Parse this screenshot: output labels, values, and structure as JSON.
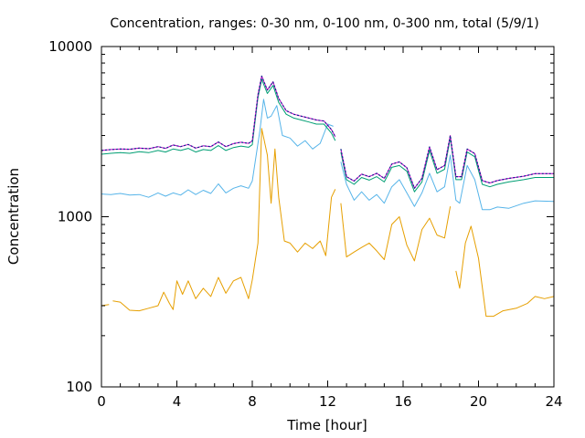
{
  "chart_data": {
    "type": "line",
    "title": "Concentration, ranges: 0-30 nm, 0-100 nm, 0-300 nm, total (5/9/1)",
    "xlabel": "Time [hour]",
    "ylabel": "Concentration",
    "xlim": [
      0,
      24
    ],
    "ylim": [
      100,
      10000
    ],
    "yscale": "log",
    "grid": false,
    "legend": "none",
    "x_ticks": [
      0,
      4,
      8,
      12,
      16,
      20,
      24
    ],
    "x_tick_labels": [
      "0",
      "4",
      "8",
      "12",
      "16",
      "20",
      "24"
    ],
    "y_ticks": [
      100,
      1000,
      10000
    ],
    "y_tick_labels": [
      "100",
      "1000",
      "10000"
    ],
    "series": [
      {
        "color": "#e69f00",
        "points": [
          [
            0,
            300
          ],
          [
            0.4,
            305
          ],
          [
            0.5,
            null
          ],
          [
            0.6,
            320
          ],
          [
            1,
            315
          ],
          [
            1.5,
            282
          ],
          [
            2,
            280
          ],
          [
            2.5,
            290
          ],
          [
            3,
            300
          ],
          [
            3.3,
            360
          ],
          [
            3.6,
            310
          ],
          [
            3.8,
            285
          ],
          [
            4,
            420
          ],
          [
            4.3,
            350
          ],
          [
            4.6,
            420
          ],
          [
            5,
            330
          ],
          [
            5.4,
            380
          ],
          [
            5.8,
            340
          ],
          [
            6.2,
            440
          ],
          [
            6.6,
            355
          ],
          [
            7,
            420
          ],
          [
            7.4,
            440
          ],
          [
            7.8,
            330
          ],
          [
            8,
            425
          ],
          [
            8.3,
            700
          ],
          [
            8.5,
            3300
          ],
          [
            8.8,
            2300
          ],
          [
            9.0,
            1200
          ],
          [
            9.2,
            2500
          ],
          [
            9.4,
            1300
          ],
          [
            9.7,
            720
          ],
          [
            10,
            700
          ],
          [
            10.4,
            620
          ],
          [
            10.8,
            700
          ],
          [
            11.2,
            650
          ],
          [
            11.6,
            720
          ],
          [
            11.9,
            590
          ],
          [
            12.2,
            1300
          ],
          [
            12.4,
            1450
          ],
          [
            12.5,
            null
          ],
          [
            12.7,
            1200
          ],
          [
            13,
            580
          ],
          [
            13.4,
            620
          ],
          [
            13.8,
            660
          ],
          [
            14.2,
            700
          ],
          [
            14.6,
            630
          ],
          [
            15,
            560
          ],
          [
            15.4,
            900
          ],
          [
            15.8,
            1000
          ],
          [
            16.2,
            680
          ],
          [
            16.6,
            550
          ],
          [
            17,
            840
          ],
          [
            17.4,
            980
          ],
          [
            17.8,
            780
          ],
          [
            18.2,
            750
          ],
          [
            18.5,
            1150
          ],
          [
            18.6,
            null
          ],
          [
            18.8,
            480
          ],
          [
            19.0,
            380
          ],
          [
            19.3,
            700
          ],
          [
            19.6,
            880
          ],
          [
            20,
            570
          ],
          [
            20.4,
            260
          ],
          [
            20.8,
            260
          ],
          [
            21.3,
            280
          ],
          [
            22,
            290
          ],
          [
            22.6,
            310
          ],
          [
            23,
            340
          ],
          [
            23.5,
            330
          ],
          [
            24,
            340
          ]
        ]
      },
      {
        "color": "#56b4e9",
        "points": [
          [
            0,
            1360
          ],
          [
            0.5,
            1350
          ],
          [
            1,
            1370
          ],
          [
            1.5,
            1340
          ],
          [
            2,
            1350
          ],
          [
            2.5,
            1300
          ],
          [
            3,
            1380
          ],
          [
            3.4,
            1320
          ],
          [
            3.8,
            1380
          ],
          [
            4.2,
            1340
          ],
          [
            4.6,
            1440
          ],
          [
            5,
            1350
          ],
          [
            5.4,
            1430
          ],
          [
            5.8,
            1370
          ],
          [
            6.2,
            1560
          ],
          [
            6.6,
            1380
          ],
          [
            7,
            1470
          ],
          [
            7.4,
            1520
          ],
          [
            7.8,
            1470
          ],
          [
            8,
            1620
          ],
          [
            8.4,
            3200
          ],
          [
            8.6,
            4900
          ],
          [
            8.8,
            3800
          ],
          [
            9,
            3900
          ],
          [
            9.3,
            4500
          ],
          [
            9.6,
            3000
          ],
          [
            10,
            2900
          ],
          [
            10.4,
            2600
          ],
          [
            10.8,
            2800
          ],
          [
            11.2,
            2500
          ],
          [
            11.6,
            2700
          ],
          [
            12,
            3500
          ],
          [
            12.3,
            3400
          ],
          [
            12.5,
            null
          ],
          [
            12.7,
            2100
          ],
          [
            13,
            1550
          ],
          [
            13.4,
            1250
          ],
          [
            13.8,
            1400
          ],
          [
            14.2,
            1250
          ],
          [
            14.6,
            1350
          ],
          [
            15,
            1200
          ],
          [
            15.4,
            1500
          ],
          [
            15.8,
            1650
          ],
          [
            16.2,
            1380
          ],
          [
            16.6,
            1150
          ],
          [
            17,
            1380
          ],
          [
            17.4,
            1800
          ],
          [
            17.8,
            1400
          ],
          [
            18.2,
            1500
          ],
          [
            18.5,
            2300
          ],
          [
            18.8,
            1250
          ],
          [
            19.0,
            1200
          ],
          [
            19.4,
            2000
          ],
          [
            19.8,
            1650
          ],
          [
            20.2,
            1100
          ],
          [
            20.6,
            1100
          ],
          [
            21,
            1140
          ],
          [
            21.6,
            1120
          ],
          [
            22.4,
            1200
          ],
          [
            23,
            1240
          ],
          [
            24,
            1230
          ]
        ]
      },
      {
        "color": "#009e73",
        "points": [
          [
            0,
            2330
          ],
          [
            0.5,
            2360
          ],
          [
            1,
            2380
          ],
          [
            1.5,
            2360
          ],
          [
            2,
            2410
          ],
          [
            2.5,
            2380
          ],
          [
            3,
            2450
          ],
          [
            3.4,
            2400
          ],
          [
            3.8,
            2500
          ],
          [
            4.2,
            2450
          ],
          [
            4.6,
            2520
          ],
          [
            5,
            2400
          ],
          [
            5.4,
            2480
          ],
          [
            5.8,
            2450
          ],
          [
            6.2,
            2620
          ],
          [
            6.6,
            2450
          ],
          [
            7,
            2550
          ],
          [
            7.4,
            2600
          ],
          [
            7.8,
            2560
          ],
          [
            8,
            2650
          ],
          [
            8.3,
            5000
          ],
          [
            8.5,
            6400
          ],
          [
            8.8,
            5300
          ],
          [
            9.1,
            5900
          ],
          [
            9.4,
            4700
          ],
          [
            9.8,
            4000
          ],
          [
            10.2,
            3800
          ],
          [
            10.6,
            3700
          ],
          [
            11,
            3600
          ],
          [
            11.4,
            3500
          ],
          [
            11.8,
            3500
          ],
          [
            12.2,
            3100
          ],
          [
            12.4,
            2800
          ],
          [
            12.5,
            null
          ],
          [
            12.7,
            2400
          ],
          [
            13,
            1650
          ],
          [
            13.4,
            1550
          ],
          [
            13.8,
            1700
          ],
          [
            14.2,
            1640
          ],
          [
            14.6,
            1720
          ],
          [
            15,
            1600
          ],
          [
            15.4,
            1950
          ],
          [
            15.8,
            2000
          ],
          [
            16.2,
            1850
          ],
          [
            16.6,
            1400
          ],
          [
            17,
            1600
          ],
          [
            17.4,
            2450
          ],
          [
            17.8,
            1800
          ],
          [
            18.2,
            1900
          ],
          [
            18.5,
            2900
          ],
          [
            18.8,
            1650
          ],
          [
            19.1,
            1650
          ],
          [
            19.4,
            2400
          ],
          [
            19.8,
            2250
          ],
          [
            20.2,
            1550
          ],
          [
            20.6,
            1500
          ],
          [
            21,
            1550
          ],
          [
            21.6,
            1600
          ],
          [
            22.4,
            1650
          ],
          [
            23,
            1700
          ],
          [
            24,
            1700
          ]
        ]
      },
      {
        "color": "#cc00cc",
        "points": [
          [
            0,
            2450
          ],
          [
            0.5,
            2480
          ],
          [
            1,
            2500
          ],
          [
            1.5,
            2490
          ],
          [
            2,
            2530
          ],
          [
            2.5,
            2510
          ],
          [
            3,
            2580
          ],
          [
            3.4,
            2520
          ],
          [
            3.8,
            2640
          ],
          [
            4.2,
            2580
          ],
          [
            4.6,
            2660
          ],
          [
            5,
            2530
          ],
          [
            5.4,
            2610
          ],
          [
            5.8,
            2580
          ],
          [
            6.2,
            2750
          ],
          [
            6.6,
            2580
          ],
          [
            7,
            2690
          ],
          [
            7.4,
            2740
          ],
          [
            7.8,
            2700
          ],
          [
            8,
            2790
          ],
          [
            8.3,
            5200
          ],
          [
            8.5,
            6700
          ],
          [
            8.8,
            5550
          ],
          [
            9.1,
            6200
          ],
          [
            9.4,
            4950
          ],
          [
            9.8,
            4200
          ],
          [
            10.2,
            4000
          ],
          [
            10.6,
            3900
          ],
          [
            11,
            3800
          ],
          [
            11.4,
            3700
          ],
          [
            11.8,
            3650
          ],
          [
            12.2,
            3250
          ],
          [
            12.4,
            2950
          ],
          [
            12.5,
            null
          ],
          [
            12.7,
            2500
          ],
          [
            13,
            1720
          ],
          [
            13.4,
            1620
          ],
          [
            13.8,
            1780
          ],
          [
            14.2,
            1720
          ],
          [
            14.6,
            1800
          ],
          [
            15,
            1680
          ],
          [
            15.4,
            2040
          ],
          [
            15.8,
            2100
          ],
          [
            16.2,
            1940
          ],
          [
            16.6,
            1470
          ],
          [
            17,
            1680
          ],
          [
            17.4,
            2570
          ],
          [
            17.8,
            1890
          ],
          [
            18.2,
            2000
          ],
          [
            18.5,
            3000
          ],
          [
            18.8,
            1720
          ],
          [
            19.1,
            1720
          ],
          [
            19.4,
            2500
          ],
          [
            19.8,
            2350
          ],
          [
            20.2,
            1630
          ],
          [
            20.6,
            1580
          ],
          [
            21,
            1630
          ],
          [
            21.6,
            1680
          ],
          [
            22.4,
            1730
          ],
          [
            23,
            1790
          ],
          [
            24,
            1790
          ]
        ]
      },
      {
        "color": "#0a2a8a",
        "dashed": true,
        "points": [
          [
            0,
            2450
          ],
          [
            0.5,
            2480
          ],
          [
            1,
            2500
          ],
          [
            1.5,
            2490
          ],
          [
            2,
            2530
          ],
          [
            2.5,
            2510
          ],
          [
            3,
            2580
          ],
          [
            3.4,
            2520
          ],
          [
            3.8,
            2640
          ],
          [
            4.2,
            2580
          ],
          [
            4.6,
            2660
          ],
          [
            5,
            2530
          ],
          [
            5.4,
            2610
          ],
          [
            5.8,
            2580
          ],
          [
            6.2,
            2750
          ],
          [
            6.6,
            2580
          ],
          [
            7,
            2690
          ],
          [
            7.4,
            2740
          ],
          [
            7.8,
            2700
          ],
          [
            8,
            2790
          ],
          [
            8.3,
            5200
          ],
          [
            8.5,
            6700
          ],
          [
            8.8,
            5550
          ],
          [
            9.1,
            6200
          ],
          [
            9.4,
            4950
          ],
          [
            9.8,
            4200
          ],
          [
            10.2,
            4000
          ],
          [
            10.6,
            3900
          ],
          [
            11,
            3800
          ],
          [
            11.4,
            3700
          ],
          [
            11.8,
            3650
          ],
          [
            12.2,
            3250
          ],
          [
            12.4,
            2950
          ],
          [
            12.5,
            null
          ],
          [
            12.7,
            2500
          ],
          [
            13,
            1720
          ],
          [
            13.4,
            1620
          ],
          [
            13.8,
            1780
          ],
          [
            14.2,
            1720
          ],
          [
            14.6,
            1800
          ],
          [
            15,
            1680
          ],
          [
            15.4,
            2040
          ],
          [
            15.8,
            2100
          ],
          [
            16.2,
            1940
          ],
          [
            16.6,
            1470
          ],
          [
            17,
            1680
          ],
          [
            17.4,
            2570
          ],
          [
            17.8,
            1890
          ],
          [
            18.2,
            2000
          ],
          [
            18.5,
            3000
          ],
          [
            18.8,
            1720
          ],
          [
            19.1,
            1720
          ],
          [
            19.4,
            2500
          ],
          [
            19.8,
            2350
          ],
          [
            20.2,
            1630
          ],
          [
            20.6,
            1580
          ],
          [
            21,
            1630
          ],
          [
            21.6,
            1680
          ],
          [
            22.4,
            1730
          ],
          [
            23,
            1790
          ],
          [
            24,
            1790
          ]
        ]
      }
    ]
  }
}
